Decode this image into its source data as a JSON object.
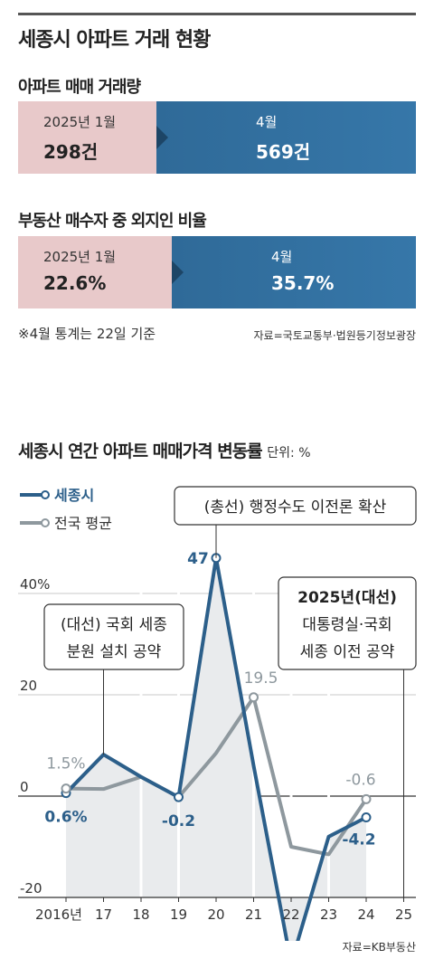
{
  "header": {
    "title": "세종시 아파트 거래 현황"
  },
  "trade_volume": {
    "title": "아파트 매매 거래량",
    "left_label": "2025년 1월",
    "left_value": "298건",
    "right_label": "4월",
    "right_value": "569건",
    "split": 0.348
  },
  "outside_buyers": {
    "title": "부동산 매수자 중 외지인 비율",
    "left_label": "2025년 1월",
    "left_value": "22.6%",
    "right_label": "4월",
    "right_value": "35.7%",
    "split": 0.386
  },
  "note": "※4월 통계는 22일 기준",
  "source_top": "자료=국토교통부·법원등기정보광장",
  "chart_heading": "세종시 연간 아파트 매매가격 변동률",
  "unit_label": "단위: %",
  "source_bottom": "자료=KB부동산",
  "chart_data": {
    "type": "line",
    "title": "세종시 연간 아파트 매매가격 변동률",
    "unit": "%",
    "x": [
      "2016년",
      "17",
      "18",
      "19",
      "20",
      "21",
      "22",
      "23",
      "24",
      "25"
    ],
    "ylim": [
      -20,
      50
    ],
    "yticks": [
      {
        "value": 40,
        "label": "40%"
      },
      {
        "value": 20,
        "label": "20"
      },
      {
        "value": 0,
        "label": "0"
      },
      {
        "value": -20,
        "label": "-20"
      }
    ],
    "series": [
      {
        "name": "세종시",
        "color": "#2c5f8a",
        "values": [
          0.6,
          8.2,
          3.8,
          -0.2,
          47,
          6.0,
          -33.0,
          -8.0,
          -4.2,
          null
        ]
      },
      {
        "name": "전국 평균",
        "color": "#8e989e",
        "values": [
          1.5,
          1.4,
          3.8,
          -0.2,
          8.5,
          19.5,
          -10.0,
          -11.5,
          -0.6,
          null
        ]
      }
    ],
    "point_labels": [
      {
        "series": 0,
        "index": 0,
        "text": "0.6%"
      },
      {
        "series": 1,
        "index": 0,
        "text": "1.5%"
      },
      {
        "series": 0,
        "index": 3,
        "text": "-0.2"
      },
      {
        "series": 0,
        "index": 4,
        "text": "47"
      },
      {
        "series": 1,
        "index": 5,
        "text": "19.5"
      },
      {
        "series": 1,
        "index": 8,
        "text": "-0.6"
      },
      {
        "series": 0,
        "index": 8,
        "text": "-4.2"
      }
    ],
    "annotations": [
      {
        "index": 1,
        "lines": [
          "(대선) 국회 세종",
          "분원 설치 공약"
        ]
      },
      {
        "index": 4,
        "lines": [
          "(총선) 행정수도 이전론 확산"
        ]
      },
      {
        "index": 9,
        "lines": [
          "2025년(대선)",
          "대통령실·국회",
          "세종 이전 공약"
        ]
      }
    ]
  }
}
